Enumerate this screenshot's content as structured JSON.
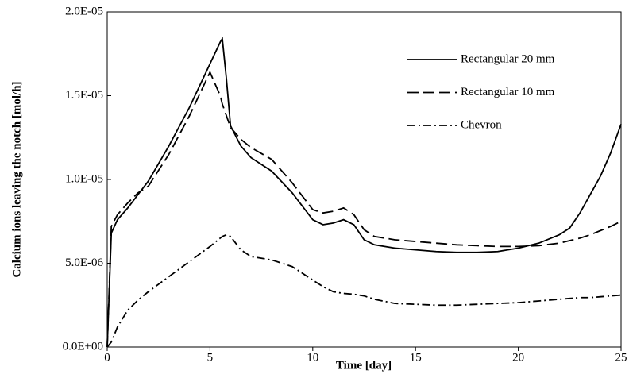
{
  "chart_data": {
    "type": "line",
    "xlabel": "Time [day]",
    "ylabel": "Calcium ions leaving the notch [mol/h]",
    "x": [
      0,
      0.2,
      0.5,
      1,
      1.5,
      2,
      3,
      4,
      5,
      5.5,
      5.6,
      5.8,
      6,
      6.5,
      7,
      8,
      9,
      10,
      10.5,
      11,
      11.5,
      12,
      12.5,
      13,
      14,
      15,
      16,
      17,
      18,
      19,
      20,
      21,
      22,
      22.5,
      23,
      23.5,
      24,
      24.5,
      25
    ],
    "series": [
      {
        "name": "Rectangular 20 mm",
        "color": "#000000",
        "dash": "solid",
        "values": [
          0,
          6.8e-06,
          7.6e-06,
          8.3e-06,
          9.1e-06,
          9.9e-06,
          1.2e-05,
          1.43e-05,
          1.69e-05,
          1.82e-05,
          1.84e-05,
          1.6e-05,
          1.32e-05,
          1.2e-05,
          1.13e-05,
          1.05e-05,
          9.2e-06,
          7.6e-06,
          7.3e-06,
          7.4e-06,
          7.6e-06,
          7.3e-06,
          6.4e-06,
          6.1e-06,
          5.9e-06,
          5.8e-06,
          5.7e-06,
          5.65e-06,
          5.65e-06,
          5.7e-06,
          5.9e-06,
          6.2e-06,
          6.7e-06,
          7.1e-06,
          8e-06,
          9.1e-06,
          1.02e-05,
          1.16e-05,
          1.33e-05
        ]
      },
      {
        "name": "Rectangular 10 mm",
        "color": "#000000",
        "dash": "dashed",
        "values": [
          0,
          7.2e-06,
          7.9e-06,
          8.6e-06,
          9.2e-06,
          9.6e-06,
          1.15e-05,
          1.38e-05,
          1.64e-05,
          1.5e-05,
          1.45e-05,
          1.38e-05,
          1.31e-05,
          1.24e-05,
          1.19e-05,
          1.12e-05,
          9.8e-06,
          8.2e-06,
          8e-06,
          8.1e-06,
          8.3e-06,
          7.9e-06,
          7e-06,
          6.6e-06,
          6.4e-06,
          6.3e-06,
          6.2e-06,
          6.1e-06,
          6.05e-06,
          6e-06,
          6e-06,
          6.05e-06,
          6.2e-06,
          6.35e-06,
          6.5e-06,
          6.7e-06,
          6.95e-06,
          7.2e-06,
          7.5e-06
        ]
      },
      {
        "name": "Chevron",
        "color": "#000000",
        "dash": "dashdot",
        "values": [
          0,
          3e-07,
          1.2e-06,
          2.2e-06,
          2.8e-06,
          3.3e-06,
          4.2e-06,
          5.1e-06,
          6e-06,
          6.5e-06,
          6.6e-06,
          6.7e-06,
          6.6e-06,
          5.8e-06,
          5.4e-06,
          5.2e-06,
          4.8e-06,
          4e-06,
          3.6e-06,
          3.3e-06,
          3.2e-06,
          3.15e-06,
          3.05e-06,
          2.85e-06,
          2.6e-06,
          2.55e-06,
          2.5e-06,
          2.5e-06,
          2.55e-06,
          2.6e-06,
          2.65e-06,
          2.75e-06,
          2.85e-06,
          2.9e-06,
          2.95e-06,
          2.95e-06,
          3e-06,
          3.05e-06,
          3.1e-06
        ]
      }
    ],
    "xlim": [
      0,
      25
    ],
    "xticks": [
      0,
      5,
      10,
      15,
      20,
      25
    ],
    "ylim": [
      0,
      2e-05
    ],
    "yticks": [
      {
        "value": 0,
        "label": "0.0E+00"
      },
      {
        "value": 5e-06,
        "label": "5.0E-06"
      },
      {
        "value": 1e-05,
        "label": "1.0E-05"
      },
      {
        "value": 1.5e-05,
        "label": "1.5E-05"
      },
      {
        "value": 2e-05,
        "label": "2.0E-05"
      }
    ],
    "grid": false,
    "legend": "upper right"
  }
}
